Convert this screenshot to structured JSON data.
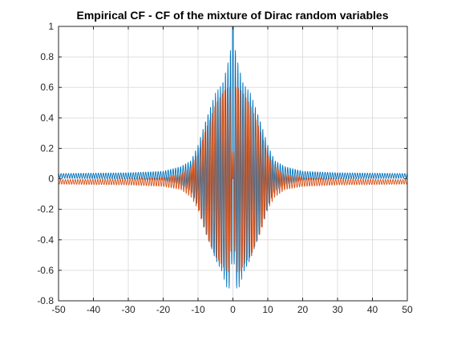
{
  "chart_data": {
    "type": "line",
    "title": "Empirical CF - CF of the mixture of Dirac random variables",
    "xlabel": "",
    "ylabel": "",
    "xlim": [
      -50,
      50
    ],
    "ylim": [
      -0.8,
      1
    ],
    "grid": true,
    "legend": "none",
    "x_ticks": [
      -50,
      -40,
      -30,
      -20,
      -10,
      0,
      10,
      20,
      30,
      40,
      50
    ],
    "y_ticks": [
      -0.8,
      -0.6,
      -0.4,
      -0.2,
      0,
      0.2,
      0.4,
      0.6,
      0.8,
      1
    ],
    "x_tick_labels": [
      "-50",
      "-40",
      "-30",
      "-20",
      "-10",
      "0",
      "10",
      "20",
      "30",
      "40",
      "50"
    ],
    "y_tick_labels": [
      "-0.8",
      "-0.6",
      "-0.4",
      "-0.2",
      "0",
      "0.2",
      "0.4",
      "0.6",
      "0.8",
      "1"
    ],
    "series": [
      {
        "color": "#0072bd",
        "description": "real part: oscillation ~1.4/unit, envelope peak 1.0 at x=0, about +/-0.6 near |x|=5, +/-0.08 near |x|=20, baseline ~+0.02",
        "peak": 1.0,
        "baseline": 0.02,
        "envelope": [
          [
            0,
            1.0
          ],
          [
            1,
            0.8
          ],
          [
            3,
            0.62
          ],
          [
            5,
            0.55
          ],
          [
            8,
            0.35
          ],
          [
            10,
            0.2
          ],
          [
            12,
            0.1
          ],
          [
            15,
            0.06
          ],
          [
            20,
            0.03
          ],
          [
            30,
            0.02
          ],
          [
            50,
            0.015
          ]
        ]
      },
      {
        "color": "#d95319",
        "description": "imaginary part: same frequency, envelope ~0.62 near x=0, min about -0.65, baseline ~-0.02",
        "peak": 0.62,
        "baseline": -0.02,
        "envelope": [
          [
            0,
            0.62
          ],
          [
            2,
            0.6
          ],
          [
            5,
            0.5
          ],
          [
            8,
            0.33
          ],
          [
            10,
            0.18
          ],
          [
            12,
            0.1
          ],
          [
            15,
            0.05
          ],
          [
            20,
            0.03
          ],
          [
            30,
            0.02
          ],
          [
            50,
            0.015
          ]
        ]
      }
    ]
  }
}
